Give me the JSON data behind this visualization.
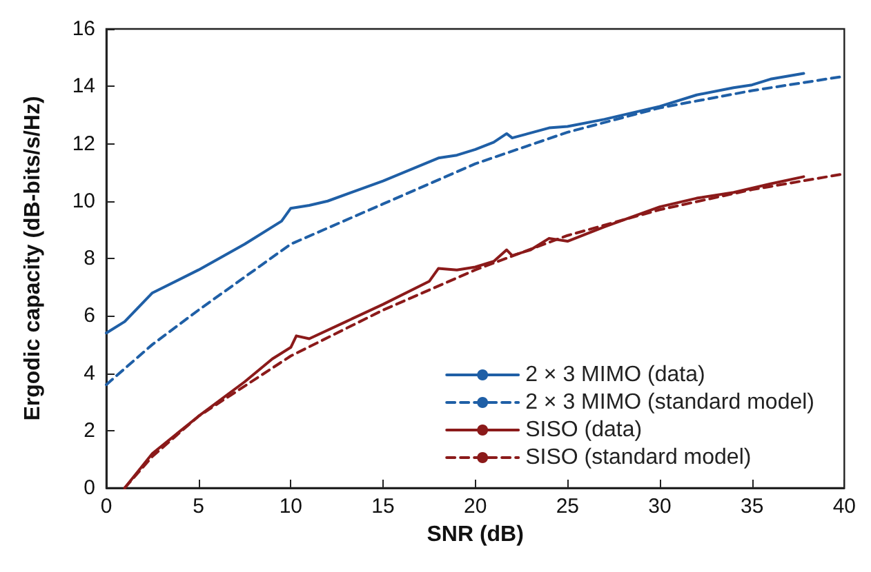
{
  "chart_data": {
    "type": "line",
    "xlabel": "SNR (dB)",
    "ylabel": "Ergodic capacity (dB-bits/s/Hz)",
    "xlim": [
      0,
      40
    ],
    "xticks": [
      0,
      5,
      10,
      15,
      20,
      25,
      30,
      35,
      40
    ],
    "ylim": [
      0,
      16
    ],
    "yticks": [
      0,
      2,
      4,
      6,
      8,
      10,
      12,
      14,
      16
    ],
    "grid": false,
    "legend": "bottom right",
    "marker": "none",
    "series": [
      {
        "name": "2 × 3 MIMO (data)",
        "color": "#1f5fa6",
        "line_style": "solid",
        "x": [
          0,
          1,
          2.5,
          5,
          7.5,
          9.5,
          10,
          11,
          12,
          15,
          18,
          19,
          20,
          21,
          21.7,
          22,
          24,
          25,
          27,
          30,
          32,
          34,
          35,
          36,
          37.8
        ],
        "values": [
          5.4,
          5.8,
          6.8,
          7.6,
          8.5,
          9.3,
          9.75,
          9.85,
          10.0,
          10.7,
          11.5,
          11.6,
          11.8,
          12.05,
          12.35,
          12.2,
          12.55,
          12.6,
          12.85,
          13.3,
          13.7,
          13.95,
          14.05,
          14.25,
          14.45
        ]
      },
      {
        "name": "2 × 3 MIMO (standard model)",
        "color": "#1f5fa6",
        "line_style": "dashed",
        "x": [
          0,
          2.5,
          5,
          10,
          15,
          20,
          25,
          30,
          35,
          40
        ],
        "values": [
          3.6,
          5.0,
          6.2,
          8.5,
          9.9,
          11.3,
          12.4,
          13.25,
          13.85,
          14.35
        ]
      },
      {
        "name": "SISO (data)",
        "color": "#8b1a1a",
        "line_style": "solid",
        "x": [
          1,
          2.5,
          5,
          7.5,
          9,
          10,
          10.3,
          11,
          13,
          15,
          17.5,
          18,
          19,
          20,
          21,
          21.7,
          22,
          23,
          24,
          25,
          27,
          30,
          32,
          34,
          36,
          37.8
        ],
        "values": [
          0,
          1.2,
          2.5,
          3.7,
          4.5,
          4.9,
          5.3,
          5.2,
          5.8,
          6.4,
          7.2,
          7.65,
          7.6,
          7.7,
          7.9,
          8.3,
          8.1,
          8.3,
          8.7,
          8.6,
          9.1,
          9.8,
          10.1,
          10.3,
          10.6,
          10.85
        ]
      },
      {
        "name": "SISO (standard model)",
        "color": "#8b1a1a",
        "line_style": "dashed",
        "x": [
          1,
          2.5,
          5,
          10,
          15,
          20,
          25,
          30,
          35,
          40
        ],
        "values": [
          0,
          1.1,
          2.5,
          4.6,
          6.2,
          7.6,
          8.8,
          9.7,
          10.4,
          10.95
        ]
      }
    ]
  }
}
